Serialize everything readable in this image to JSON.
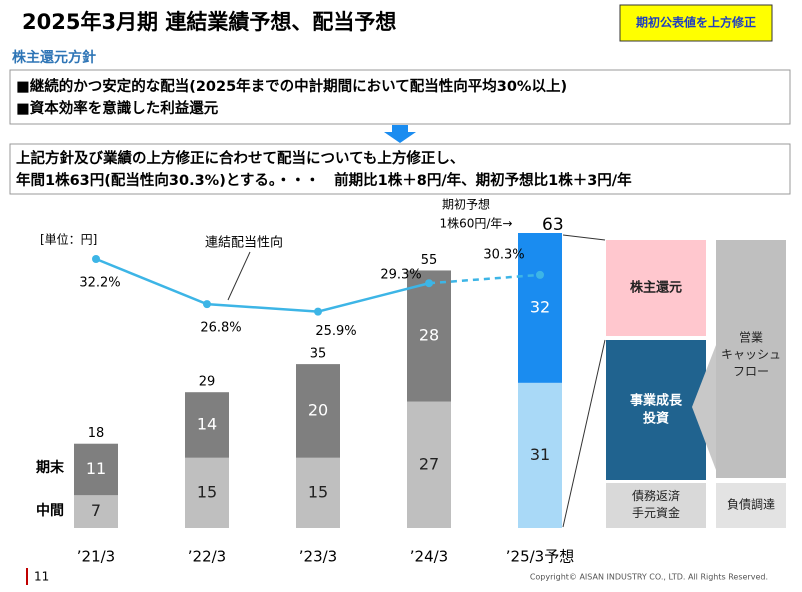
{
  "header": {
    "title": "2025年3月期 連結業績予想、配当予想",
    "badge": "期初公表値を上方修正"
  },
  "policy": {
    "heading": "株主還元方針",
    "bullets": [
      "■継続的かつ安定的な配当(2025年までの中計期間において配当性向平均30%以上)",
      "■資本効率を意識した利益還元"
    ]
  },
  "statement": [
    "上記方針及び業績の上方修正に合わせて配当についても上方修正し、",
    "年間1株63円(配当性向30.3%)とする。・・・　前期比1株＋8円/年、期初予想比1株＋3円/年"
  ],
  "chart_data": {
    "type": "bar",
    "stacked": true,
    "unit_label": "[単位：円]",
    "categories": [
      "’21/3",
      "’22/3",
      "’23/3",
      "’24/3",
      "’25/3予想"
    ],
    "series": [
      {
        "name": "中間",
        "color": "#bfbfbf",
        "colors": [
          "#bfbfbf",
          "#bfbfbf",
          "#bfbfbf",
          "#bfbfbf",
          "#a9d9f7"
        ],
        "values": [
          7,
          15,
          15,
          27,
          31
        ]
      },
      {
        "name": "期末",
        "color": "#7f7f7f",
        "colors": [
          "#7f7f7f",
          "#7f7f7f",
          "#7f7f7f",
          "#7f7f7f",
          "#1a8cf0"
        ],
        "values": [
          11,
          14,
          20,
          28,
          32
        ]
      }
    ],
    "totals": [
      18,
      29,
      35,
      55,
      63
    ],
    "ratio": {
      "name": "連結配当性向",
      "color": "#3db5e6",
      "values": [
        32.2,
        26.8,
        25.9,
        29.3,
        30.3
      ],
      "value_labels": [
        "32.2%",
        "26.8%",
        "25.9%",
        "29.3%",
        "30.3%"
      ],
      "dashed_from": 3
    },
    "annotations": [
      "期初予想",
      "1株60円/年→"
    ]
  },
  "diagram": {
    "left": [
      {
        "lines": [
          "株主還元"
        ]
      },
      {
        "lines": [
          "事業成長",
          "投資"
        ]
      },
      {
        "lines": [
          "債務返済",
          "手元資金"
        ]
      }
    ],
    "right": [
      {
        "lines": [
          "営業",
          "キャッシュ",
          "フロー"
        ]
      },
      {
        "lines": [
          "負債調達"
        ]
      }
    ]
  },
  "footer": {
    "page": "11",
    "copyright": "Copyright© AISAN INDUSTRY CO., LTD. All Rights Reserved."
  }
}
